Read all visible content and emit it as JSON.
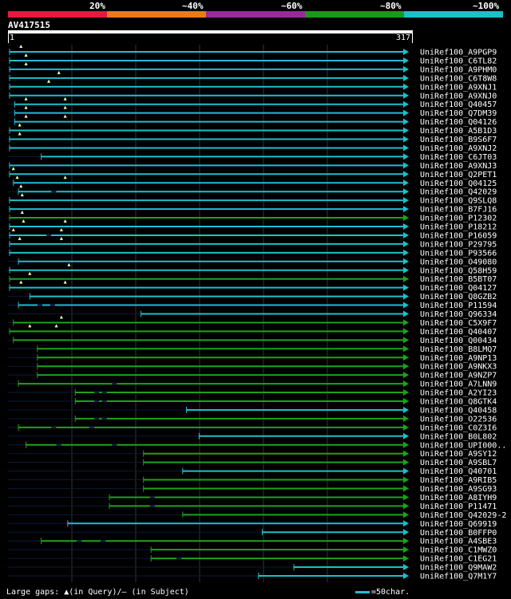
{
  "legend": {
    "percent_labels": [
      "20%",
      "~40%",
      "~60%",
      "~80%",
      "~100%"
    ],
    "colors": [
      "#e8193c",
      "#ec7a1c",
      "#9a2a9a",
      "#1a9a1a",
      "#1cc0c8"
    ]
  },
  "query": {
    "id": "AV417515",
    "start_label": "1",
    "end_label": "317"
  },
  "footer": {
    "gaps_text": "Large gaps: ▲(in Query)/– (in Subject)",
    "scale_text": "=50char."
  },
  "chart_data": {
    "type": "alignment-overview",
    "query_length": 317,
    "hits": [
      {
        "name": "UniRef100_A9PGP9",
        "start": 1,
        "end": 317,
        "color": "cyan",
        "gaps": [
          10
        ],
        "dash": []
      },
      {
        "name": "UniRef100_C6TL82",
        "start": 1,
        "end": 317,
        "color": "cyan",
        "gaps": [
          14
        ],
        "dash": []
      },
      {
        "name": "UniRef100_A9PHM0",
        "start": 1,
        "end": 317,
        "color": "cyan",
        "gaps": [
          14
        ],
        "dash": []
      },
      {
        "name": "UniRef100_C6T8W8",
        "start": 1,
        "end": 317,
        "color": "cyan",
        "gaps": [
          40
        ],
        "dash": []
      },
      {
        "name": "UniRef100_A9XNJ1",
        "start": 1,
        "end": 317,
        "color": "cyan",
        "gaps": [
          32
        ],
        "dash": []
      },
      {
        "name": "UniRef100_A9XNJ0",
        "start": 1,
        "end": 317,
        "color": "cyan",
        "gaps": [],
        "dash": []
      },
      {
        "name": "UniRef100_Q40457",
        "start": 5,
        "end": 317,
        "color": "cyan",
        "gaps": [
          14,
          45
        ],
        "dash": []
      },
      {
        "name": "UniRef100_Q7DM39",
        "start": 5,
        "end": 317,
        "color": "cyan",
        "gaps": [
          14,
          45
        ],
        "dash": []
      },
      {
        "name": "UniRef100_Q04126",
        "start": 5,
        "end": 317,
        "color": "cyan",
        "gaps": [
          14,
          45
        ],
        "dash": []
      },
      {
        "name": "UniRef100_A5B1D3",
        "start": 1,
        "end": 317,
        "color": "cyan",
        "gaps": [
          9
        ],
        "dash": []
      },
      {
        "name": "UniRef100_B9S6F7",
        "start": 1,
        "end": 317,
        "color": "cyan",
        "gaps": [
          9
        ],
        "dash": []
      },
      {
        "name": "UniRef100_A9XNJ2",
        "start": 1,
        "end": 317,
        "color": "cyan",
        "gaps": [],
        "dash": []
      },
      {
        "name": "UniRef100_C6JT03",
        "start": 26,
        "end": 317,
        "color": "cyan",
        "gaps": [],
        "dash": []
      },
      {
        "name": "UniRef100_A9XNJ3",
        "start": 1,
        "end": 317,
        "color": "cyan",
        "gaps": [],
        "dash": []
      },
      {
        "name": "UniRef100_Q2PET1",
        "start": 1,
        "end": 317,
        "color": "cyan",
        "gaps": [
          4
        ],
        "dash": []
      },
      {
        "name": "UniRef100_Q04125",
        "start": 4,
        "end": 317,
        "color": "cyan",
        "gaps": [
          7,
          45
        ],
        "dash": []
      },
      {
        "name": "UniRef100_Q42029",
        "start": 8,
        "end": 317,
        "color": "cyan",
        "gaps": [
          10
        ],
        "dash": [
          36
        ]
      },
      {
        "name": "UniRef100_Q9SLQ8",
        "start": 1,
        "end": 317,
        "color": "cyan",
        "gaps": [
          11
        ],
        "dash": []
      },
      {
        "name": "UniRef100_B7FJ16",
        "start": 1,
        "end": 317,
        "color": "cyan",
        "gaps": [],
        "dash": []
      },
      {
        "name": "UniRef100_P12302",
        "start": 1,
        "end": 317,
        "color": "green",
        "gaps": [
          11
        ],
        "dash": []
      },
      {
        "name": "UniRef100_P18212",
        "start": 1,
        "end": 317,
        "color": "cyan",
        "gaps": [
          12,
          45
        ],
        "dash": []
      },
      {
        "name": "UniRef100_P16059",
        "start": 1,
        "end": 317,
        "color": "cyan",
        "gaps": [
          4,
          42
        ],
        "dash": [
          32
        ]
      },
      {
        "name": "UniRef100_P29795",
        "start": 1,
        "end": 317,
        "color": "cyan",
        "gaps": [
          9,
          42
        ],
        "dash": []
      },
      {
        "name": "UniRef100_P93566",
        "start": 1,
        "end": 317,
        "color": "cyan",
        "gaps": [],
        "dash": []
      },
      {
        "name": "UniRef100_O49080",
        "start": 8,
        "end": 317,
        "color": "cyan",
        "gaps": [],
        "dash": []
      },
      {
        "name": "UniRef100_Q58H59",
        "start": 1,
        "end": 317,
        "color": "cyan",
        "gaps": [
          48
        ],
        "dash": []
      },
      {
        "name": "UniRef100_B5BT07",
        "start": 1,
        "end": 317,
        "color": "green",
        "gaps": [
          17
        ],
        "dash": []
      },
      {
        "name": "UniRef100_Q04127",
        "start": 1,
        "end": 317,
        "color": "cyan",
        "gaps": [
          10,
          45
        ],
        "dash": []
      },
      {
        "name": "UniRef100_Q8GZB2",
        "start": 17,
        "end": 317,
        "color": "cyan",
        "gaps": [],
        "dash": []
      },
      {
        "name": "UniRef100_P11594",
        "start": 8,
        "end": 317,
        "color": "cyan",
        "gaps": [],
        "dash": [
          25,
          35
        ]
      },
      {
        "name": "UniRef100_Q96334",
        "start": 105,
        "end": 317,
        "color": "cyan",
        "gaps": [],
        "dash": []
      },
      {
        "name": "UniRef100_C5X9F7",
        "start": 4,
        "end": 317,
        "color": "green",
        "gaps": [
          42
        ],
        "dash": []
      },
      {
        "name": "UniRef100_Q40407",
        "start": 1,
        "end": 317,
        "color": "green",
        "gaps": [
          17,
          38
        ],
        "dash": []
      },
      {
        "name": "UniRef100_Q00434",
        "start": 4,
        "end": 317,
        "color": "green",
        "gaps": [],
        "dash": []
      },
      {
        "name": "UniRef100_B8LMQ7",
        "start": 23,
        "end": 317,
        "color": "green",
        "gaps": [],
        "dash": []
      },
      {
        "name": "UniRef100_A9NP13",
        "start": 23,
        "end": 317,
        "color": "green",
        "gaps": [],
        "dash": []
      },
      {
        "name": "UniRef100_A9NKX3",
        "start": 23,
        "end": 317,
        "color": "green",
        "gaps": [],
        "dash": []
      },
      {
        "name": "UniRef100_A9NZP7",
        "start": 23,
        "end": 317,
        "color": "green",
        "gaps": [],
        "dash": []
      },
      {
        "name": "UniRef100_A7LNN9",
        "start": 8,
        "end": 317,
        "color": "green",
        "gaps": [],
        "dash": [
          84
        ]
      },
      {
        "name": "UniRef100_A2YI23",
        "start": 53,
        "end": 317,
        "color": "green",
        "gaps": [],
        "dash": [
          70,
          76
        ]
      },
      {
        "name": "UniRef100_Q8GTK4",
        "start": 53,
        "end": 317,
        "color": "green",
        "gaps": [],
        "dash": [
          70,
          76
        ]
      },
      {
        "name": "UniRef100_Q40458",
        "start": 141,
        "end": 317,
        "color": "cyan",
        "gaps": [],
        "dash": []
      },
      {
        "name": "UniRef100_O22536",
        "start": 53,
        "end": 317,
        "color": "green",
        "gaps": [],
        "dash": [
          70,
          76
        ]
      },
      {
        "name": "UniRef100_C0Z3I6",
        "start": 8,
        "end": 317,
        "color": "green",
        "gaps": [],
        "dash": [
          36,
          66
        ]
      },
      {
        "name": "UniRef100_B0L802",
        "start": 151,
        "end": 317,
        "color": "cyan",
        "gaps": [],
        "dash": []
      },
      {
        "name": "UniRef100_UPI000..",
        "start": 14,
        "end": 317,
        "color": "green",
        "gaps": [],
        "dash": [
          40,
          84
        ]
      },
      {
        "name": "UniRef100_A9SY12",
        "start": 107,
        "end": 317,
        "color": "green",
        "gaps": [],
        "dash": []
      },
      {
        "name": "UniRef100_A9SBL7",
        "start": 107,
        "end": 317,
        "color": "green",
        "gaps": [],
        "dash": []
      },
      {
        "name": "UniRef100_Q40701",
        "start": 138,
        "end": 317,
        "color": "cyan",
        "gaps": [],
        "dash": []
      },
      {
        "name": "UniRef100_A9RIB5",
        "start": 107,
        "end": 317,
        "color": "green",
        "gaps": [],
        "dash": []
      },
      {
        "name": "UniRef100_A9SG93",
        "start": 107,
        "end": 317,
        "color": "green",
        "gaps": [],
        "dash": []
      },
      {
        "name": "UniRef100_A8IYH9",
        "start": 80,
        "end": 317,
        "color": "green",
        "gaps": [],
        "dash": [
          114
        ]
      },
      {
        "name": "UniRef100_P11471",
        "start": 80,
        "end": 317,
        "color": "green",
        "gaps": [],
        "dash": [
          114
        ]
      },
      {
        "name": "UniRef100_Q42029-2",
        "start": 138,
        "end": 317,
        "color": "green",
        "gaps": [],
        "dash": []
      },
      {
        "name": "UniRef100_Q69919",
        "start": 47,
        "end": 317,
        "color": "cyan",
        "gaps": [],
        "dash": []
      },
      {
        "name": "UniRef100_B0FFP0",
        "start": 201,
        "end": 317,
        "color": "cyan",
        "gaps": [],
        "dash": []
      },
      {
        "name": "UniRef100_A4SBE3",
        "start": 26,
        "end": 317,
        "color": "green",
        "gaps": [],
        "dash": [
          56,
          75
        ]
      },
      {
        "name": "UniRef100_C1MWZ0",
        "start": 113,
        "end": 317,
        "color": "green",
        "gaps": [],
        "dash": []
      },
      {
        "name": "UniRef100_C1EG21",
        "start": 113,
        "end": 317,
        "color": "green",
        "gaps": [],
        "dash": [
          135
        ]
      },
      {
        "name": "UniRef100_Q9MAW2",
        "start": 226,
        "end": 317,
        "color": "cyan",
        "gaps": [],
        "dash": []
      },
      {
        "name": "UniRef100_Q7M1Y7",
        "start": 198,
        "end": 317,
        "color": "cyan",
        "gaps": [],
        "dash": []
      }
    ]
  }
}
